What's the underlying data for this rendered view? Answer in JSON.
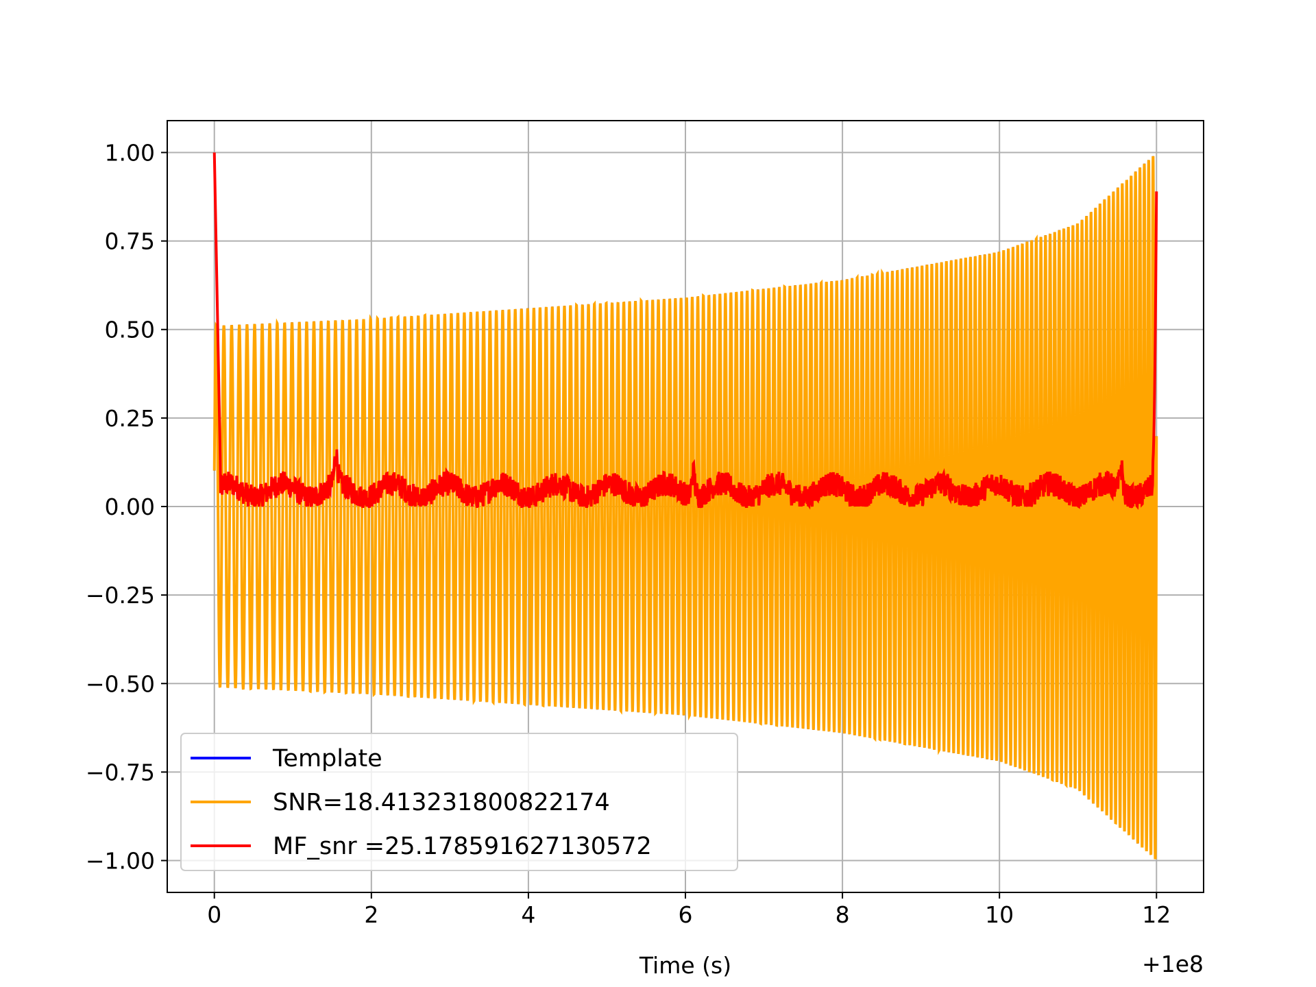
{
  "chart_data": {
    "type": "line",
    "title": "",
    "xlabel": "Time (s)",
    "ylabel": "",
    "x_offset_label": "+1e8",
    "xlim": [
      -0.6,
      12.6
    ],
    "ylim": [
      -1.09,
      1.09
    ],
    "xticks": [
      0,
      2,
      4,
      6,
      8,
      10,
      12
    ],
    "xtick_labels": [
      "0",
      "2",
      "4",
      "6",
      "8",
      "10",
      "12"
    ],
    "yticks": [
      1.0,
      0.75,
      0.5,
      0.25,
      0.0,
      -0.25,
      -0.5,
      -0.75,
      -1.0
    ],
    "ytick_labels": [
      "1.00",
      "0.75",
      "0.50",
      "0.25",
      "0.00",
      "−0.25",
      "−0.50",
      "−0.75",
      "−1.00"
    ],
    "grid": true,
    "legend_position": "lower-left",
    "series": [
      {
        "name": "Template",
        "color": "#0000ff",
        "description_of_shape": "chirp signal, hidden beneath SNR series"
      },
      {
        "name": "SNR=18.413231800822174",
        "color": "#ffa500",
        "x_start": 0.0,
        "x_end": 12.0,
        "envelope": [
          {
            "x": 0.0,
            "amp": 0.51
          },
          {
            "x": 2.0,
            "amp": 0.53
          },
          {
            "x": 4.0,
            "amp": 0.56
          },
          {
            "x": 6.0,
            "amp": 0.59
          },
          {
            "x": 8.0,
            "amp": 0.64
          },
          {
            "x": 10.0,
            "amp": 0.72
          },
          {
            "x": 11.0,
            "amp": 0.8
          },
          {
            "x": 12.0,
            "amp": 1.0
          }
        ],
        "cycles_per_second_start": 10,
        "cycles_per_second_end": 18
      },
      {
        "name": "MF_snr =25.178591627130572",
        "color": "#ff0000",
        "x_start": 0.0,
        "x_end": 12.0,
        "start_value": 1.0,
        "end_value": 0.89,
        "baseline_range": [
          0.0,
          0.15
        ],
        "peaks": [
          {
            "x": 1.55,
            "y": 0.14
          },
          {
            "x": 6.1,
            "y": 0.13
          },
          {
            "x": 11.55,
            "y": 0.13
          }
        ]
      }
    ]
  }
}
